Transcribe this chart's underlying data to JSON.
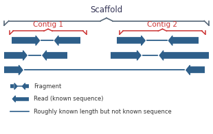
{
  "title": "Scaffold",
  "contig1_label": "Contig 1",
  "contig2_label": "Contig 2",
  "arrow_color": "#2E5F8A",
  "contig_color": "#CC3333",
  "scaffold_color": "#556677",
  "legend_items": [
    "Fragment",
    "Read (known sequence)",
    "Roughly known length but not known sequence"
  ],
  "bg_color": "#ffffff",
  "xlim": [
    0,
    10
  ],
  "ylim": [
    0,
    6.5
  ]
}
